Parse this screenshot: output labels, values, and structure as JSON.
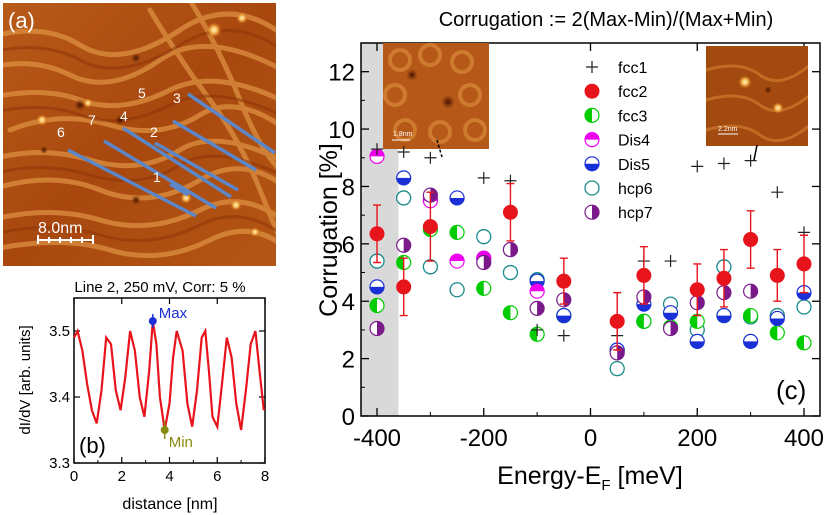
{
  "panel_a": {
    "label": "(a)",
    "scalebar_label": "8.0nm",
    "line_labels": [
      "1",
      "2",
      "3",
      "4",
      "5",
      "6",
      "7"
    ],
    "colors": {
      "line": "#5b86c8"
    }
  },
  "panel_b": {
    "label": "(b)",
    "title": "Line 2, 250 mV, Corr: 5 %",
    "max_label": "Max",
    "min_label": "Min",
    "colors": {
      "curve": "#e8141c",
      "max": "#1a2fd6",
      "min": "#8a8a10"
    }
  },
  "panel_c": {
    "label": "(c)",
    "title": "Corrugation := 2(Max-Min)/(Max+Min)",
    "inset1_scale": "1.8nm",
    "inset2_scale": "2.2nm"
  },
  "chart_data": [
    {
      "type": "line",
      "title": "Line 2, 250 mV, Corr: 5 %",
      "xlabel": "distance [nm]",
      "ylabel": "dI/dV [arb. units]",
      "xlim": [
        0,
        8
      ],
      "ylim": [
        3.3,
        3.55
      ],
      "xticks": [
        0,
        2,
        4,
        6,
        8
      ],
      "yticks": [
        3.3,
        3.4,
        3.5
      ],
      "ytick_labels": [
        "3.3",
        "3.4",
        "3.5"
      ],
      "x": [
        0,
        0.15,
        0.35,
        0.55,
        0.75,
        0.95,
        1.15,
        1.35,
        1.55,
        1.75,
        1.95,
        2.15,
        2.35,
        2.55,
        2.75,
        2.95,
        3.15,
        3.3,
        3.45,
        3.6,
        3.8,
        4.0,
        4.15,
        4.3,
        4.55,
        4.75,
        4.95,
        5.15,
        5.35,
        5.5,
        5.65,
        5.8,
        6.0,
        6.2,
        6.4,
        6.6,
        6.8,
        7.0,
        7.2,
        7.4,
        7.6,
        7.8,
        7.95
      ],
      "y": [
        3.49,
        3.5,
        3.47,
        3.42,
        3.38,
        3.36,
        3.41,
        3.49,
        3.48,
        3.41,
        3.38,
        3.43,
        3.5,
        3.47,
        3.4,
        3.37,
        3.44,
        3.515,
        3.48,
        3.4,
        3.35,
        3.39,
        3.46,
        3.5,
        3.47,
        3.39,
        3.355,
        3.41,
        3.49,
        3.5,
        3.44,
        3.37,
        3.355,
        3.42,
        3.49,
        3.46,
        3.39,
        3.35,
        3.41,
        3.48,
        3.5,
        3.43,
        3.38
      ],
      "markers": [
        {
          "name": "Max",
          "x": 3.3,
          "y": 3.515
        },
        {
          "name": "Min",
          "x": 3.8,
          "y": 3.35
        }
      ]
    },
    {
      "type": "scatter",
      "title": "Corrugation := 2(Max-Min)/(Max+Min)",
      "xlabel": "Energy-E",
      "xlabel_sub": "F",
      "xlabel_unit": " [meV]",
      "ylabel": "Corrugation [%]",
      "xlim": [
        -430,
        430
      ],
      "ylim": [
        0,
        13
      ],
      "xticks": [
        -400,
        -200,
        0,
        200,
        400
      ],
      "xtick_labels": [
        "-400",
        "-200",
        "0",
        "200",
        "400"
      ],
      "yticks": [
        0,
        2,
        4,
        6,
        8,
        10,
        12
      ],
      "ytick_labels": [
        "0",
        "2",
        "4",
        "6",
        "8",
        "10",
        "12"
      ],
      "shaded_region": [
        -430,
        -360
      ],
      "series": [
        {
          "name": "fcc1",
          "marker": "plus",
          "color": "#222222",
          "x": [
            -400,
            -350,
            -300,
            -200,
            -150,
            -100,
            -50,
            50,
            100,
            150,
            200,
            250,
            300,
            350,
            400
          ],
          "y": [
            9.3,
            9.2,
            9.0,
            8.3,
            8.2,
            3.0,
            2.8,
            2.8,
            5.4,
            5.4,
            8.7,
            8.8,
            8.9,
            7.8,
            6.4
          ]
        },
        {
          "name": "fcc2",
          "marker": "filled",
          "color": "#e8141c",
          "x": [
            -400,
            -350,
            -300,
            -150,
            -50,
            50,
            100,
            200,
            250,
            300,
            350,
            400
          ],
          "y": [
            6.35,
            4.5,
            6.6,
            7.1,
            4.7,
            3.3,
            4.9,
            4.4,
            4.8,
            6.15,
            4.9,
            5.3
          ],
          "err": [
            1.0,
            1.0,
            1.2,
            1.0,
            0.8,
            1.0,
            1.0,
            0.9,
            1.0,
            1.0,
            0.9,
            1.0
          ]
        },
        {
          "name": "fcc3",
          "marker": "half-left",
          "color": "#00cc00",
          "x": [
            -400,
            -350,
            -300,
            -250,
            -200,
            -150,
            -100,
            -50,
            50,
            100,
            150,
            200,
            250,
            300,
            350,
            400
          ],
          "y": [
            3.85,
            5.35,
            6.5,
            6.4,
            4.45,
            3.6,
            2.85,
            3.5,
            2.3,
            3.3,
            3.1,
            3.3,
            3.5,
            3.5,
            2.9,
            2.55
          ]
        },
        {
          "name": "Dis4",
          "marker": "half-top",
          "color": "#ee00ee",
          "x": [
            -400,
            -300,
            -250,
            -200,
            -100
          ],
          "y": [
            9.05,
            7.5,
            5.4,
            5.5,
            4.35
          ]
        },
        {
          "name": "Dis5",
          "marker": "half-bottom",
          "color": "#1a2fd6",
          "x": [
            -400,
            -350,
            -300,
            -250,
            -200,
            -150,
            -100,
            -50,
            50,
            100,
            150,
            200,
            250,
            300,
            350,
            400
          ],
          "y": [
            4.5,
            8.3,
            7.55,
            7.6,
            5.5,
            5.8,
            4.7,
            3.5,
            2.3,
            3.9,
            3.6,
            2.6,
            3.5,
            2.6,
            3.4,
            4.3
          ]
        },
        {
          "name": "hcp6",
          "marker": "open",
          "color": "#1a8a8a",
          "x": [
            -400,
            -350,
            -300,
            -250,
            -200,
            -150,
            -100,
            -50,
            50,
            100,
            150,
            200,
            250,
            300,
            350,
            400
          ],
          "y": [
            5.4,
            7.6,
            5.2,
            4.4,
            6.25,
            5.0,
            4.75,
            3.5,
            1.65,
            3.3,
            3.9,
            3.0,
            5.2,
            3.45,
            3.5,
            3.8
          ]
        },
        {
          "name": "hcp7",
          "marker": "half-right",
          "color": "#7a1a8a",
          "x": [
            -400,
            -350,
            -300,
            -200,
            -150,
            -100,
            -50,
            50,
            100,
            150,
            200,
            250,
            300
          ],
          "y": [
            3.05,
            5.95,
            7.7,
            5.35,
            5.8,
            3.75,
            4.05,
            2.2,
            4.15,
            3.05,
            3.95,
            4.3,
            4.35
          ]
        }
      ]
    }
  ]
}
